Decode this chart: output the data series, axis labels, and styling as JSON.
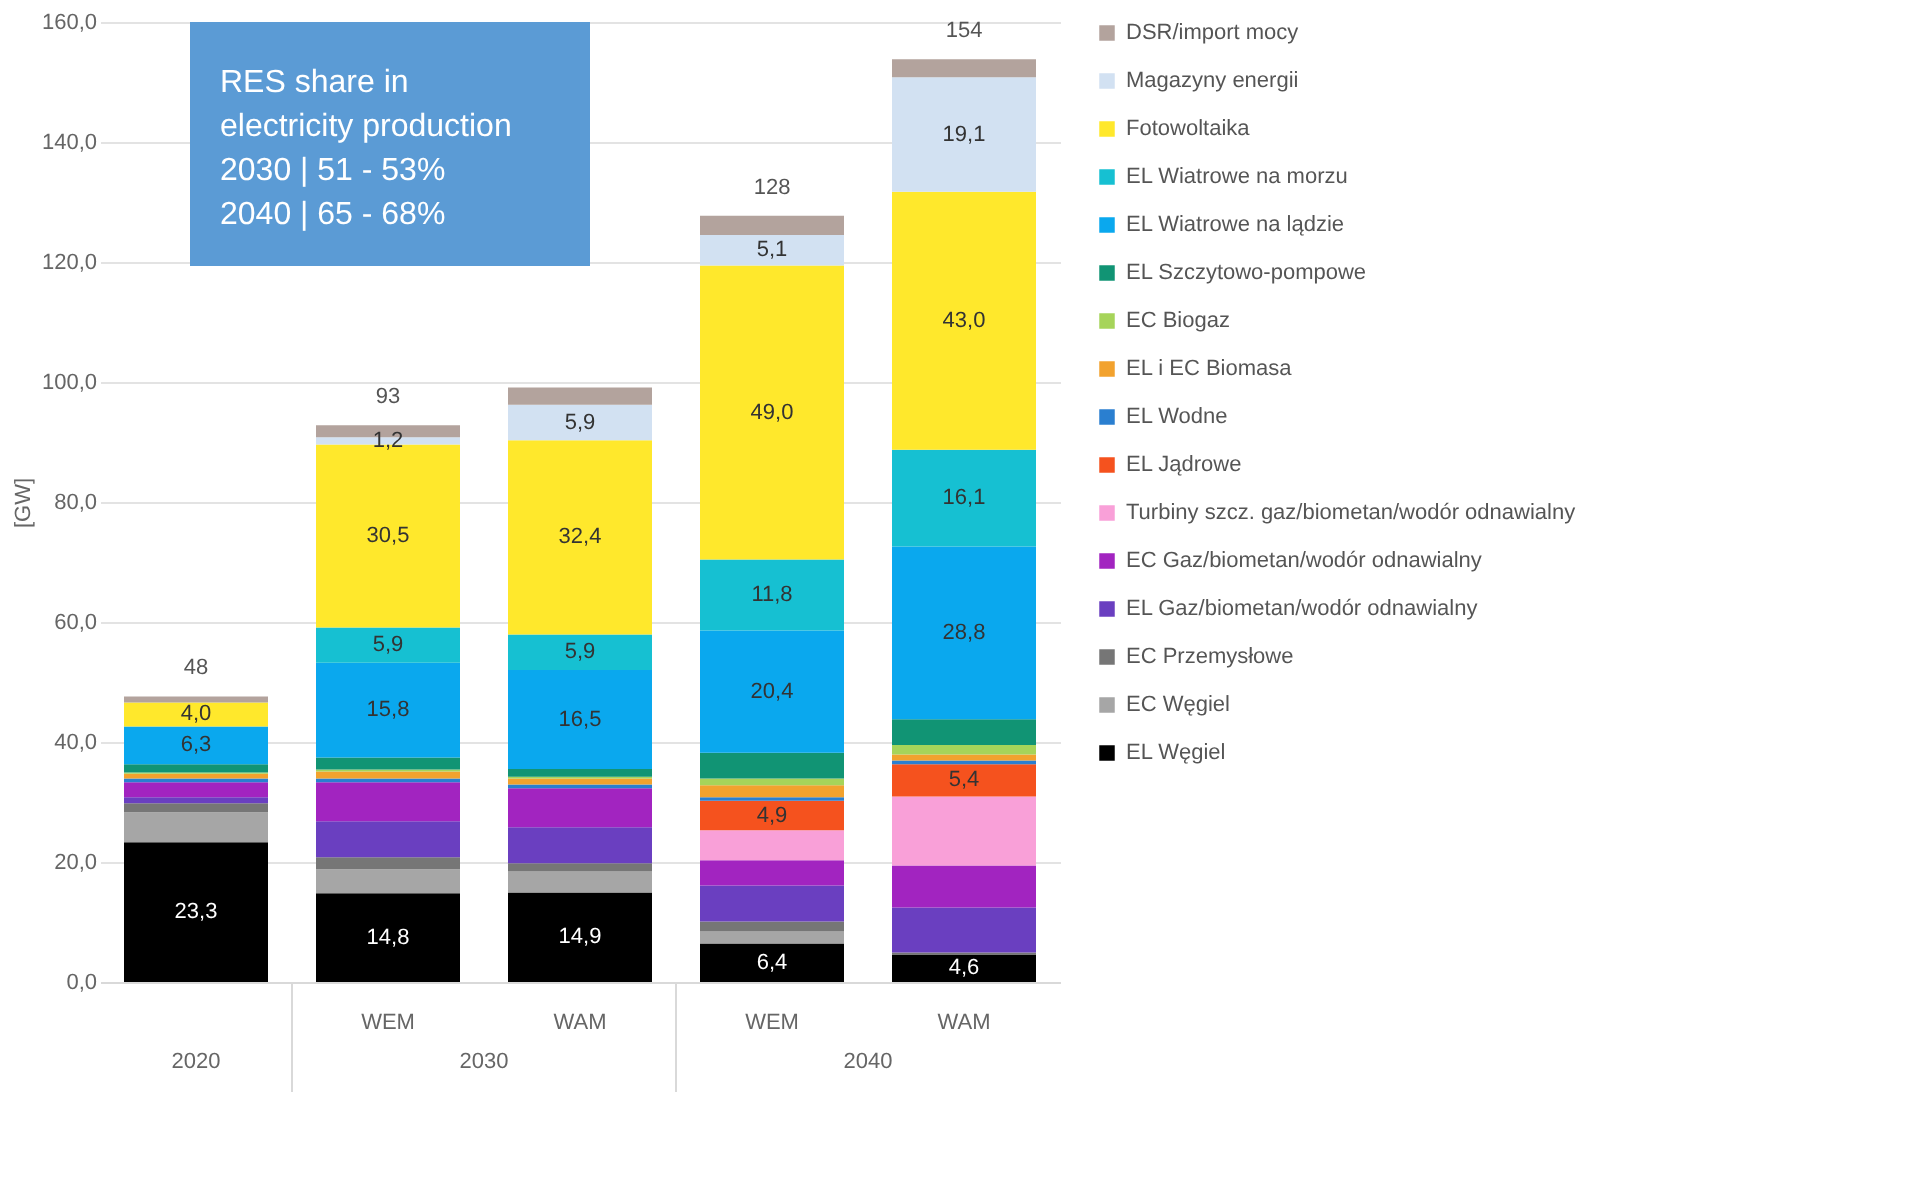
{
  "chart_data": {
    "type": "bar",
    "stacked": true,
    "ylabel": "[GW]",
    "categories": [
      null,
      "WEM",
      "WAM",
      "WEM",
      "WAM"
    ],
    "ylim": [
      0,
      160
    ],
    "yticks": [
      {
        "value": 0,
        "label": "0,0"
      },
      {
        "value": 20,
        "label": "20,0"
      },
      {
        "value": 40,
        "label": "40,0"
      },
      {
        "value": 60,
        "label": "60,0"
      },
      {
        "value": 80,
        "label": "80,0"
      },
      {
        "value": 100,
        "label": "100,0"
      },
      {
        "value": 120,
        "label": "120,0"
      },
      {
        "value": 140,
        "label": "140,0"
      },
      {
        "value": 160,
        "label": "160,0"
      }
    ],
    "grid": "y",
    "legend": "right",
    "totals": [
      "48",
      "93",
      null,
      "128",
      "154"
    ],
    "annotations": [
      "2020",
      "2030",
      "2040",
      "RES share in electricity production",
      "2030 | 51 - 53%",
      "2040 | 65 - 68%"
    ],
    "series": [
      {
        "name": "EL Węgiel",
        "color": "#000000",
        "values": [
          23.3,
          14.8,
          14.9,
          6.4,
          4.6
        ],
        "value_labels": [
          "23,3",
          "14,8",
          "14,9",
          "6,4",
          "4,6"
        ]
      },
      {
        "name": "EC Węgiel",
        "color": "#a6a6a6",
        "values": [
          5.0,
          4.0,
          3.5,
          2.0,
          0
        ]
      },
      {
        "name": "EC Przemysłowe",
        "color": "#767676",
        "values": [
          1.5,
          2.0,
          1.4,
          1.7,
          0.3
        ]
      },
      {
        "name": "EL Gaz/biometan/wodór odnawialny",
        "color": "#6a3fc0",
        "values": [
          1.0,
          6.0,
          6.0,
          6.0,
          7.5
        ]
      },
      {
        "name": "EC Gaz/biometan/wodór odnawialny",
        "color": "#a224c0",
        "values": [
          2.5,
          6.5,
          6.5,
          4.2,
          7.0
        ]
      },
      {
        "name": "Turbiny szcz. gaz/biometan/wodór odnawialny",
        "color": "#f9a0d8",
        "values": [
          0,
          0,
          0,
          5.0,
          11.5
        ]
      },
      {
        "name": "EL Jądrowe",
        "color": "#f5521e",
        "values": [
          0,
          0,
          0,
          4.9,
          5.4
        ],
        "value_labels": [
          null,
          null,
          null,
          "4,9",
          "5,4"
        ]
      },
      {
        "name": "EL Wodne",
        "color": "#2a7fd0",
        "values": [
          0.6,
          0.6,
          0.6,
          0.6,
          0.6
        ]
      },
      {
        "name": "EL i EC Biomasa",
        "color": "#f2a22e",
        "values": [
          0.8,
          1.2,
          1.0,
          2.0,
          1.0
        ]
      },
      {
        "name": "EC Biogaz",
        "color": "#a6d45a",
        "values": [
          0.2,
          0.3,
          0.3,
          1.1,
          1.6
        ]
      },
      {
        "name": "EL Szczytowo-pompowe",
        "color": "#119474",
        "values": [
          1.4,
          2.0,
          1.3,
          4.3,
          4.3
        ]
      },
      {
        "name": "EL Wiatrowe na lądzie",
        "color": "#0aa8ee",
        "values": [
          6.3,
          15.8,
          16.5,
          20.4,
          28.8
        ],
        "value_labels": [
          "6,3",
          "15,8",
          "16,5",
          "20,4",
          "28,8"
        ]
      },
      {
        "name": "EL Wiatrowe na morzu",
        "color": "#16c0d2",
        "values": [
          0,
          5.9,
          5.9,
          11.8,
          16.1
        ],
        "value_labels": [
          null,
          "5,9",
          "5,9",
          "11,8",
          "16,1"
        ]
      },
      {
        "name": "Fotowoltaika",
        "color": "#ffe82c",
        "values": [
          4.0,
          30.5,
          32.4,
          49.0,
          43.0
        ],
        "value_labels": [
          "4,0",
          "30,5",
          "32,4",
          "49,0",
          "43,0"
        ]
      },
      {
        "name": "Magazyny energii",
        "color": "#d2e1f2",
        "values": [
          null,
          1.2,
          5.9,
          5.1,
          19.1
        ],
        "value_labels": [
          null,
          "1,2",
          "5,9",
          "5,1",
          "19,1"
        ]
      },
      {
        "name": "DSR/import mocy",
        "color": "#b3a39d",
        "values": [
          1.0,
          2.0,
          2.9,
          3.2,
          3.0
        ]
      }
    ]
  }
}
